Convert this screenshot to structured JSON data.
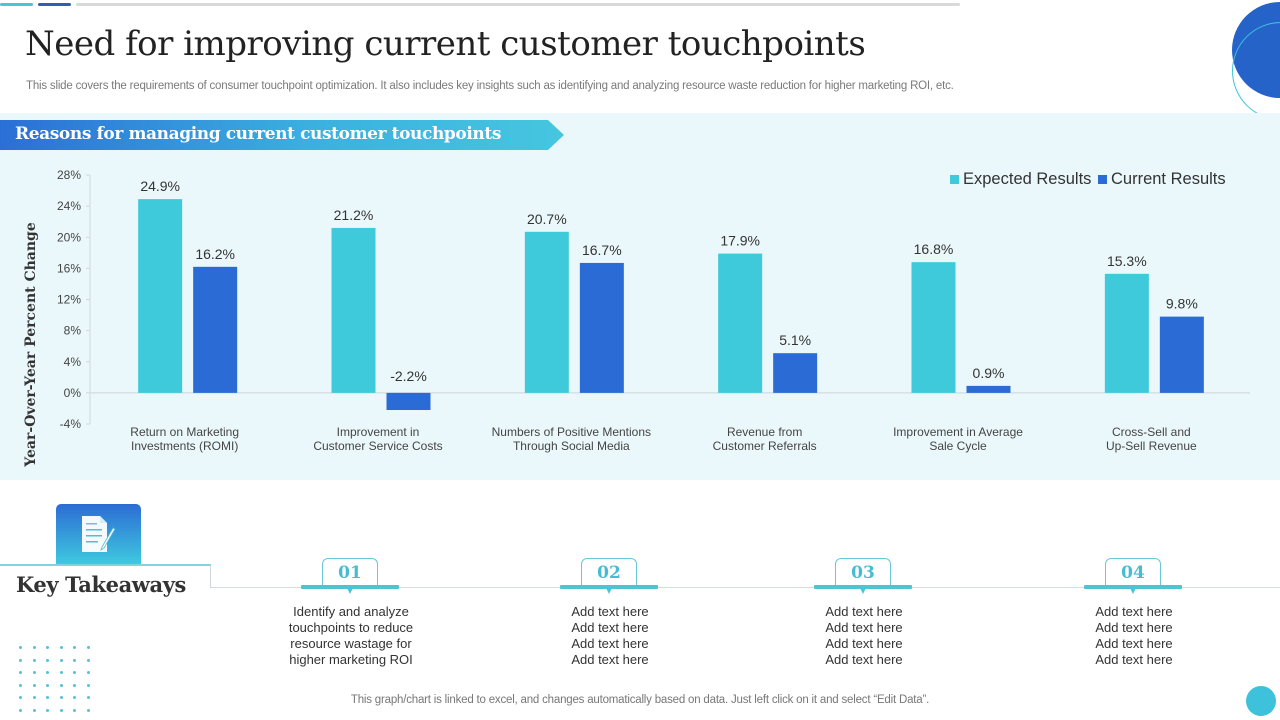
{
  "header": {
    "title": "Need for improving current customer touchpoints",
    "subtitle": "This slide covers the requirements of consumer touchpoint optimization. It also includes key insights such as identifying and analyzing resource waste reduction for higher marketing ROI, etc."
  },
  "banner": {
    "text": "Reasons for managing current customer touchpoints"
  },
  "colors": {
    "expected": "#3ecadb",
    "current": "#2a6bd6",
    "accent": "#4ec3d6"
  },
  "chart_data": {
    "type": "bar",
    "title": "",
    "xlabel": "",
    "ylabel": "Year-Over-Year Percent Change",
    "ylim": [
      -4,
      28
    ],
    "yticks": [
      28,
      24,
      20,
      16,
      12,
      8,
      4,
      0,
      -4
    ],
    "ytick_labels": [
      "28%",
      "24%",
      "20%",
      "16%",
      "12%",
      "8%",
      "4%",
      "0%",
      "-4%"
    ],
    "grid": false,
    "legend": "top-right",
    "categories": [
      [
        "Return on Marketing",
        "Investments (ROMI)"
      ],
      [
        "Improvement in",
        "Customer Service Costs"
      ],
      [
        "Numbers of Positive Mentions",
        "Through Social Media"
      ],
      [
        "Revenue from",
        "Customer Referrals"
      ],
      [
        "Improvement in Average",
        "Sale Cycle"
      ],
      [
        "Cross-Sell and",
        "Up-Sell Revenue"
      ]
    ],
    "series": [
      {
        "name": "Expected Results",
        "values": [
          24.9,
          21.2,
          20.7,
          17.9,
          16.8,
          15.3
        ],
        "labels": [
          "24.9%",
          "21.2%",
          "20.7%",
          "17.9%",
          "16.8%",
          "15.3%"
        ]
      },
      {
        "name": "Current Results",
        "values": [
          16.2,
          -2.2,
          16.7,
          5.1,
          0.9,
          9.8
        ],
        "labels": [
          "16.2%",
          "-2.2%",
          "16.7%",
          "5.1%",
          "0.9%",
          "9.8%"
        ]
      }
    ]
  },
  "takeaways": {
    "title": "Key Takeaways",
    "icon": "document-pen-icon",
    "steps": [
      {
        "num": "01",
        "lines": [
          "Identify and analyze",
          "touchpoints to reduce",
          "resource wastage for",
          "higher marketing ROI"
        ]
      },
      {
        "num": "02",
        "lines": [
          "Add text here",
          "Add text here",
          "Add text here",
          "Add text here"
        ]
      },
      {
        "num": "03",
        "lines": [
          "Add text here",
          "Add text here",
          "Add text here",
          "Add text here"
        ]
      },
      {
        "num": "04",
        "lines": [
          "Add text here",
          "Add text here",
          "Add text here",
          "Add text here"
        ]
      }
    ]
  },
  "footer": {
    "note": "This graph/chart is linked to excel,  and changes automatically based on data. Just left click on it and select “Edit Data”."
  }
}
